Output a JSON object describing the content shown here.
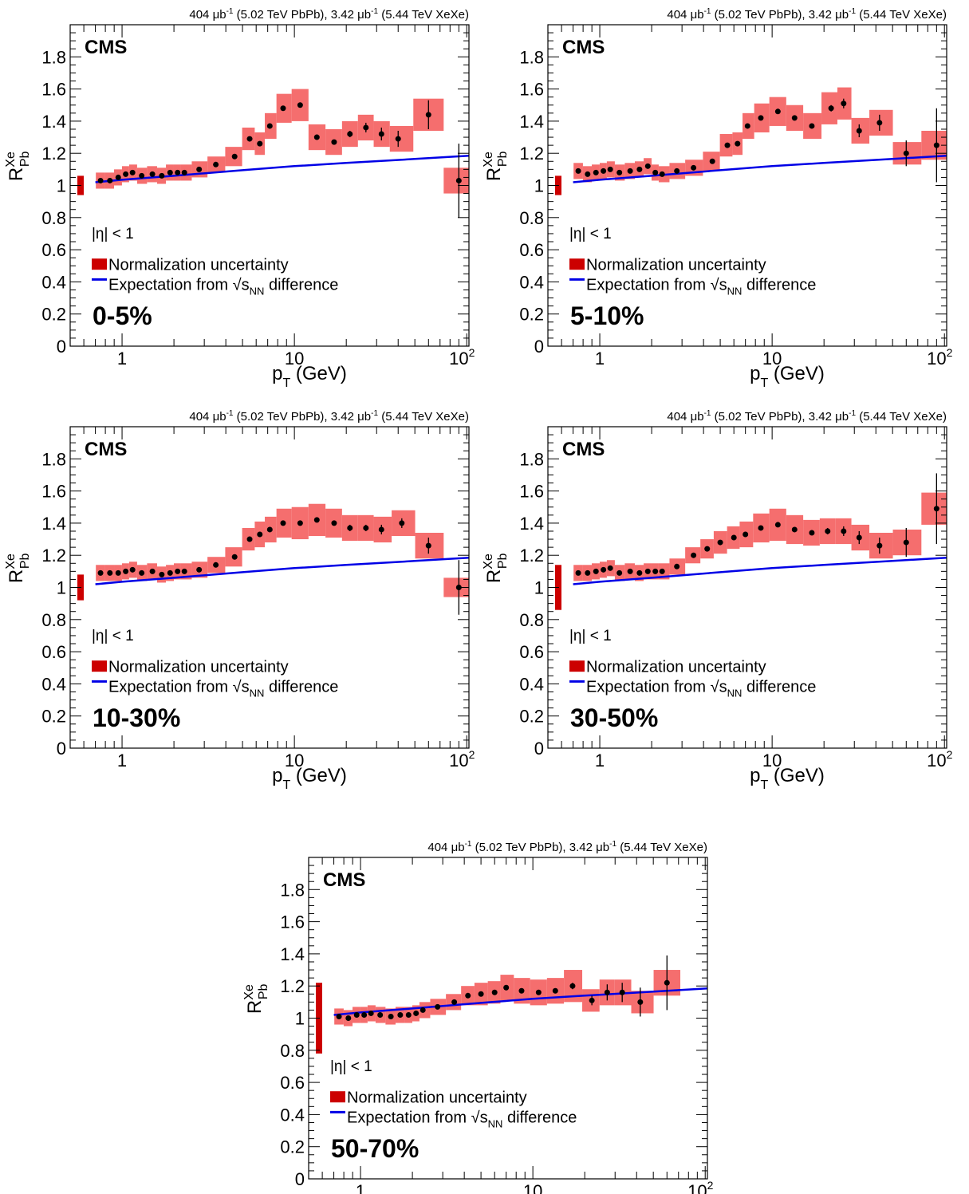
{
  "lumi_label": {
    "pre": "404 ",
    "mu": "μ",
    "b": "b",
    "exp": "-1",
    "mid": " (5.02 TeV PbPb), 3.42 ",
    "post": " (5.44 TeV XeXe)"
  },
  "experiment": "CMS",
  "legend": {
    "eta_cut": "|η| < 1",
    "norm_label": "Normalization uncertainty",
    "line_label_pre": "Expectation from ",
    "sqrt_s": "s",
    "nn_sub": "NN",
    "line_label_post": " difference"
  },
  "axes": {
    "xlabel_main": "p",
    "xlabel_sub": "T",
    "xlabel_unit": " (GeV)",
    "ylabel_main": "R",
    "ylabel_sup": "Xe",
    "ylabel_sub": "Pb",
    "x_ticks": [
      {
        "value": 1,
        "label": "1",
        "exp": ""
      },
      {
        "value": 10,
        "label": "10",
        "exp": ""
      },
      {
        "value": 100,
        "label": "10",
        "exp": "2"
      }
    ],
    "y_ticks": [
      0,
      0.2,
      0.4,
      0.6,
      0.8,
      1,
      1.2,
      1.4,
      1.6,
      1.8
    ]
  },
  "colors": {
    "syst_band": "#f56e6e",
    "norm_box": "#cc0000",
    "expectation_line": "#0000e6",
    "points": "#000000"
  },
  "chart_data": [
    {
      "type": "scatter",
      "centrality": "0-5%",
      "xlim": [
        0.5,
        103
      ],
      "ylim": [
        0,
        2
      ],
      "xscale": "log",
      "norm_unc": 0.06,
      "points": [
        {
          "x": 0.75,
          "y": 1.03,
          "stat": 0.005,
          "syst": 0.05
        },
        {
          "x": 0.85,
          "y": 1.03,
          "stat": 0.005,
          "syst": 0.05
        },
        {
          "x": 0.95,
          "y": 1.05,
          "stat": 0.005,
          "syst": 0.05
        },
        {
          "x": 1.05,
          "y": 1.07,
          "stat": 0.005,
          "syst": 0.05
        },
        {
          "x": 1.15,
          "y": 1.08,
          "stat": 0.005,
          "syst": 0.05
        },
        {
          "x": 1.3,
          "y": 1.06,
          "stat": 0.005,
          "syst": 0.05
        },
        {
          "x": 1.5,
          "y": 1.07,
          "stat": 0.005,
          "syst": 0.05
        },
        {
          "x": 1.7,
          "y": 1.06,
          "stat": 0.005,
          "syst": 0.05
        },
        {
          "x": 1.9,
          "y": 1.08,
          "stat": 0.005,
          "syst": 0.05
        },
        {
          "x": 2.1,
          "y": 1.08,
          "stat": 0.005,
          "syst": 0.05
        },
        {
          "x": 2.3,
          "y": 1.08,
          "stat": 0.005,
          "syst": 0.05
        },
        {
          "x": 2.8,
          "y": 1.1,
          "stat": 0.005,
          "syst": 0.05
        },
        {
          "x": 3.5,
          "y": 1.13,
          "stat": 0.005,
          "syst": 0.05
        },
        {
          "x": 4.5,
          "y": 1.18,
          "stat": 0.006,
          "syst": 0.06
        },
        {
          "x": 5.5,
          "y": 1.29,
          "stat": 0.007,
          "syst": 0.07
        },
        {
          "x": 6.3,
          "y": 1.26,
          "stat": 0.007,
          "syst": 0.07
        },
        {
          "x": 7.2,
          "y": 1.37,
          "stat": 0.008,
          "syst": 0.08
        },
        {
          "x": 8.6,
          "y": 1.48,
          "stat": 0.01,
          "syst": 0.09
        },
        {
          "x": 10.8,
          "y": 1.5,
          "stat": 0.012,
          "syst": 0.1
        },
        {
          "x": 13.5,
          "y": 1.3,
          "stat": 0.015,
          "syst": 0.08
        },
        {
          "x": 17,
          "y": 1.27,
          "stat": 0.015,
          "syst": 0.08
        },
        {
          "x": 21,
          "y": 1.32,
          "stat": 0.02,
          "syst": 0.08
        },
        {
          "x": 26,
          "y": 1.36,
          "stat": 0.03,
          "syst": 0.08
        },
        {
          "x": 32,
          "y": 1.32,
          "stat": 0.04,
          "syst": 0.08
        },
        {
          "x": 40,
          "y": 1.29,
          "stat": 0.05,
          "syst": 0.08
        },
        {
          "x": 60,
          "y": 1.44,
          "stat": 0.09,
          "syst": 0.1
        },
        {
          "x": 90,
          "y": 1.03,
          "stat": 0.23,
          "syst": 0.08
        }
      ]
    },
    {
      "type": "scatter",
      "centrality": "5-10%",
      "xlim": [
        0.5,
        103
      ],
      "ylim": [
        0,
        2
      ],
      "xscale": "log",
      "norm_unc": 0.06,
      "points": [
        {
          "x": 0.75,
          "y": 1.09,
          "stat": 0.005,
          "syst": 0.05
        },
        {
          "x": 0.85,
          "y": 1.07,
          "stat": 0.005,
          "syst": 0.05
        },
        {
          "x": 0.95,
          "y": 1.08,
          "stat": 0.005,
          "syst": 0.05
        },
        {
          "x": 1.05,
          "y": 1.09,
          "stat": 0.005,
          "syst": 0.05
        },
        {
          "x": 1.15,
          "y": 1.1,
          "stat": 0.005,
          "syst": 0.05
        },
        {
          "x": 1.3,
          "y": 1.08,
          "stat": 0.005,
          "syst": 0.05
        },
        {
          "x": 1.5,
          "y": 1.09,
          "stat": 0.005,
          "syst": 0.05
        },
        {
          "x": 1.7,
          "y": 1.1,
          "stat": 0.005,
          "syst": 0.05
        },
        {
          "x": 1.9,
          "y": 1.12,
          "stat": 0.005,
          "syst": 0.05
        },
        {
          "x": 2.1,
          "y": 1.08,
          "stat": 0.005,
          "syst": 0.05
        },
        {
          "x": 2.3,
          "y": 1.07,
          "stat": 0.005,
          "syst": 0.05
        },
        {
          "x": 2.8,
          "y": 1.09,
          "stat": 0.005,
          "syst": 0.05
        },
        {
          "x": 3.5,
          "y": 1.11,
          "stat": 0.005,
          "syst": 0.05
        },
        {
          "x": 4.5,
          "y": 1.15,
          "stat": 0.006,
          "syst": 0.06
        },
        {
          "x": 5.5,
          "y": 1.25,
          "stat": 0.007,
          "syst": 0.07
        },
        {
          "x": 6.3,
          "y": 1.26,
          "stat": 0.007,
          "syst": 0.07
        },
        {
          "x": 7.2,
          "y": 1.37,
          "stat": 0.008,
          "syst": 0.08
        },
        {
          "x": 8.6,
          "y": 1.42,
          "stat": 0.01,
          "syst": 0.09
        },
        {
          "x": 10.8,
          "y": 1.46,
          "stat": 0.012,
          "syst": 0.09
        },
        {
          "x": 13.5,
          "y": 1.42,
          "stat": 0.015,
          "syst": 0.08
        },
        {
          "x": 17,
          "y": 1.37,
          "stat": 0.015,
          "syst": 0.08
        },
        {
          "x": 22,
          "y": 1.48,
          "stat": 0.02,
          "syst": 0.1
        },
        {
          "x": 26,
          "y": 1.51,
          "stat": 0.03,
          "syst": 0.1
        },
        {
          "x": 32,
          "y": 1.34,
          "stat": 0.04,
          "syst": 0.08
        },
        {
          "x": 42,
          "y": 1.39,
          "stat": 0.05,
          "syst": 0.08
        },
        {
          "x": 60,
          "y": 1.2,
          "stat": 0.08,
          "syst": 0.07
        },
        {
          "x": 90,
          "y": 1.25,
          "stat": 0.23,
          "syst": 0.09
        }
      ]
    },
    {
      "type": "scatter",
      "centrality": "10-30%",
      "xlim": [
        0.5,
        103
      ],
      "ylim": [
        0,
        2
      ],
      "xscale": "log",
      "norm_unc": 0.08,
      "points": [
        {
          "x": 0.75,
          "y": 1.09,
          "stat": 0.005,
          "syst": 0.05
        },
        {
          "x": 0.85,
          "y": 1.09,
          "stat": 0.005,
          "syst": 0.05
        },
        {
          "x": 0.95,
          "y": 1.09,
          "stat": 0.005,
          "syst": 0.05
        },
        {
          "x": 1.05,
          "y": 1.1,
          "stat": 0.005,
          "syst": 0.05
        },
        {
          "x": 1.15,
          "y": 1.11,
          "stat": 0.005,
          "syst": 0.05
        },
        {
          "x": 1.3,
          "y": 1.09,
          "stat": 0.005,
          "syst": 0.05
        },
        {
          "x": 1.5,
          "y": 1.1,
          "stat": 0.005,
          "syst": 0.05
        },
        {
          "x": 1.7,
          "y": 1.08,
          "stat": 0.005,
          "syst": 0.05
        },
        {
          "x": 1.9,
          "y": 1.09,
          "stat": 0.005,
          "syst": 0.05
        },
        {
          "x": 2.1,
          "y": 1.1,
          "stat": 0.005,
          "syst": 0.05
        },
        {
          "x": 2.3,
          "y": 1.1,
          "stat": 0.005,
          "syst": 0.05
        },
        {
          "x": 2.8,
          "y": 1.11,
          "stat": 0.005,
          "syst": 0.05
        },
        {
          "x": 3.5,
          "y": 1.14,
          "stat": 0.005,
          "syst": 0.05
        },
        {
          "x": 4.5,
          "y": 1.19,
          "stat": 0.006,
          "syst": 0.06
        },
        {
          "x": 5.5,
          "y": 1.3,
          "stat": 0.007,
          "syst": 0.07
        },
        {
          "x": 6.3,
          "y": 1.33,
          "stat": 0.007,
          "syst": 0.08
        },
        {
          "x": 7.2,
          "y": 1.36,
          "stat": 0.008,
          "syst": 0.08
        },
        {
          "x": 8.6,
          "y": 1.4,
          "stat": 0.01,
          "syst": 0.09
        },
        {
          "x": 10.8,
          "y": 1.4,
          "stat": 0.012,
          "syst": 0.1
        },
        {
          "x": 13.5,
          "y": 1.42,
          "stat": 0.015,
          "syst": 0.1
        },
        {
          "x": 17,
          "y": 1.4,
          "stat": 0.015,
          "syst": 0.09
        },
        {
          "x": 21,
          "y": 1.37,
          "stat": 0.02,
          "syst": 0.08
        },
        {
          "x": 26,
          "y": 1.37,
          "stat": 0.02,
          "syst": 0.08
        },
        {
          "x": 32,
          "y": 1.36,
          "stat": 0.03,
          "syst": 0.08
        },
        {
          "x": 42,
          "y": 1.4,
          "stat": 0.03,
          "syst": 0.08
        },
        {
          "x": 60,
          "y": 1.26,
          "stat": 0.05,
          "syst": 0.08
        },
        {
          "x": 90,
          "y": 1.0,
          "stat": 0.17,
          "syst": 0.06
        }
      ]
    },
    {
      "type": "scatter",
      "centrality": "30-50%",
      "xlim": [
        0.5,
        103
      ],
      "ylim": [
        0,
        2
      ],
      "xscale": "log",
      "norm_unc": 0.14,
      "points": [
        {
          "x": 0.75,
          "y": 1.09,
          "stat": 0.005,
          "syst": 0.05
        },
        {
          "x": 0.85,
          "y": 1.09,
          "stat": 0.005,
          "syst": 0.05
        },
        {
          "x": 0.95,
          "y": 1.1,
          "stat": 0.005,
          "syst": 0.05
        },
        {
          "x": 1.05,
          "y": 1.11,
          "stat": 0.005,
          "syst": 0.05
        },
        {
          "x": 1.15,
          "y": 1.12,
          "stat": 0.005,
          "syst": 0.05
        },
        {
          "x": 1.3,
          "y": 1.09,
          "stat": 0.005,
          "syst": 0.05
        },
        {
          "x": 1.5,
          "y": 1.1,
          "stat": 0.005,
          "syst": 0.05
        },
        {
          "x": 1.7,
          "y": 1.09,
          "stat": 0.005,
          "syst": 0.05
        },
        {
          "x": 1.9,
          "y": 1.1,
          "stat": 0.005,
          "syst": 0.05
        },
        {
          "x": 2.1,
          "y": 1.1,
          "stat": 0.005,
          "syst": 0.05
        },
        {
          "x": 2.3,
          "y": 1.1,
          "stat": 0.005,
          "syst": 0.05
        },
        {
          "x": 2.8,
          "y": 1.13,
          "stat": 0.005,
          "syst": 0.05
        },
        {
          "x": 3.5,
          "y": 1.2,
          "stat": 0.005,
          "syst": 0.05
        },
        {
          "x": 4.2,
          "y": 1.24,
          "stat": 0.006,
          "syst": 0.06
        },
        {
          "x": 5.0,
          "y": 1.28,
          "stat": 0.007,
          "syst": 0.07
        },
        {
          "x": 6.0,
          "y": 1.31,
          "stat": 0.007,
          "syst": 0.07
        },
        {
          "x": 7.0,
          "y": 1.33,
          "stat": 0.008,
          "syst": 0.08
        },
        {
          "x": 8.6,
          "y": 1.37,
          "stat": 0.01,
          "syst": 0.09
        },
        {
          "x": 10.8,
          "y": 1.39,
          "stat": 0.012,
          "syst": 0.1
        },
        {
          "x": 13.5,
          "y": 1.36,
          "stat": 0.015,
          "syst": 0.09
        },
        {
          "x": 17,
          "y": 1.34,
          "stat": 0.015,
          "syst": 0.08
        },
        {
          "x": 21,
          "y": 1.35,
          "stat": 0.02,
          "syst": 0.08
        },
        {
          "x": 26,
          "y": 1.35,
          "stat": 0.03,
          "syst": 0.08
        },
        {
          "x": 32,
          "y": 1.31,
          "stat": 0.04,
          "syst": 0.08
        },
        {
          "x": 42,
          "y": 1.26,
          "stat": 0.05,
          "syst": 0.08
        },
        {
          "x": 60,
          "y": 1.28,
          "stat": 0.09,
          "syst": 0.08
        },
        {
          "x": 90,
          "y": 1.49,
          "stat": 0.22,
          "syst": 0.1
        }
      ]
    },
    {
      "type": "scatter",
      "centrality": "50-70%",
      "xlim": [
        0.5,
        103
      ],
      "ylim": [
        0,
        2
      ],
      "xscale": "log",
      "norm_unc": 0.22,
      "points": [
        {
          "x": 0.75,
          "y": 1.01,
          "stat": 0.005,
          "syst": 0.05
        },
        {
          "x": 0.85,
          "y": 1.0,
          "stat": 0.005,
          "syst": 0.05
        },
        {
          "x": 0.95,
          "y": 1.02,
          "stat": 0.005,
          "syst": 0.05
        },
        {
          "x": 1.05,
          "y": 1.02,
          "stat": 0.005,
          "syst": 0.05
        },
        {
          "x": 1.15,
          "y": 1.03,
          "stat": 0.005,
          "syst": 0.05
        },
        {
          "x": 1.3,
          "y": 1.02,
          "stat": 0.005,
          "syst": 0.05
        },
        {
          "x": 1.5,
          "y": 1.01,
          "stat": 0.005,
          "syst": 0.05
        },
        {
          "x": 1.7,
          "y": 1.02,
          "stat": 0.005,
          "syst": 0.05
        },
        {
          "x": 1.9,
          "y": 1.02,
          "stat": 0.005,
          "syst": 0.05
        },
        {
          "x": 2.1,
          "y": 1.03,
          "stat": 0.005,
          "syst": 0.05
        },
        {
          "x": 2.3,
          "y": 1.05,
          "stat": 0.005,
          "syst": 0.05
        },
        {
          "x": 2.8,
          "y": 1.07,
          "stat": 0.005,
          "syst": 0.05
        },
        {
          "x": 3.5,
          "y": 1.1,
          "stat": 0.005,
          "syst": 0.05
        },
        {
          "x": 4.2,
          "y": 1.14,
          "stat": 0.006,
          "syst": 0.06
        },
        {
          "x": 5.0,
          "y": 1.15,
          "stat": 0.007,
          "syst": 0.07
        },
        {
          "x": 6.0,
          "y": 1.16,
          "stat": 0.007,
          "syst": 0.07
        },
        {
          "x": 7.0,
          "y": 1.19,
          "stat": 0.008,
          "syst": 0.08
        },
        {
          "x": 8.6,
          "y": 1.17,
          "stat": 0.01,
          "syst": 0.08
        },
        {
          "x": 10.8,
          "y": 1.16,
          "stat": 0.012,
          "syst": 0.08
        },
        {
          "x": 13.5,
          "y": 1.17,
          "stat": 0.015,
          "syst": 0.08
        },
        {
          "x": 17,
          "y": 1.2,
          "stat": 0.02,
          "syst": 0.1
        },
        {
          "x": 22,
          "y": 1.11,
          "stat": 0.03,
          "syst": 0.07
        },
        {
          "x": 27,
          "y": 1.16,
          "stat": 0.05,
          "syst": 0.08
        },
        {
          "x": 33,
          "y": 1.16,
          "stat": 0.06,
          "syst": 0.08
        },
        {
          "x": 42,
          "y": 1.1,
          "stat": 0.09,
          "syst": 0.07
        },
        {
          "x": 60,
          "y": 1.22,
          "stat": 0.17,
          "syst": 0.08
        }
      ]
    }
  ],
  "expectation_curve": {
    "x": [
      0.7,
      1,
      2,
      5,
      10,
      20,
      50,
      103
    ],
    "y": [
      1.02,
      1.035,
      1.06,
      1.095,
      1.12,
      1.14,
      1.165,
      1.185
    ]
  }
}
